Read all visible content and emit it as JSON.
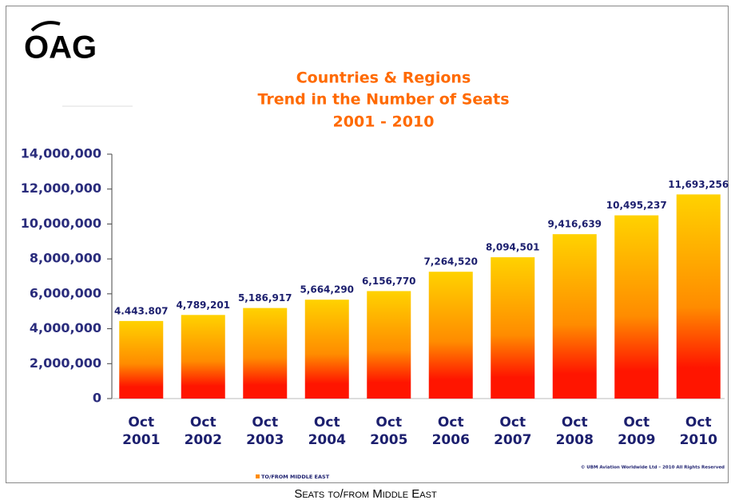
{
  "logo": "OAG",
  "caption": "Seats to/from Middle East",
  "chart_data": {
    "type": "bar",
    "title": [
      "Countries & Regions",
      "Trend in the Number of Seats",
      "2001 - 2010"
    ],
    "categories": [
      "Oct 2001",
      "Oct 2002",
      "Oct 2003",
      "Oct 2004",
      "Oct 2005",
      "Oct 2006",
      "Oct 2007",
      "Oct 2008",
      "Oct 2009",
      "Oct 2010"
    ],
    "series": [
      {
        "name": "TO/FROM MIDDLE EAST",
        "color": "#ff8c00",
        "gradient": [
          "#ffd200",
          "#ff8c00",
          "#ff1500"
        ],
        "values": [
          4443807,
          4789201,
          5186917,
          5664290,
          6156770,
          7264520,
          8094501,
          9416639,
          10495237,
          11693256
        ],
        "value_labels": [
          "4.443.807",
          "4,789,201",
          "5,186,917",
          "5,664,290",
          "6,156,770",
          "7,264,520",
          "8,094,501",
          "9,416,639",
          "10,495,237",
          "11,693,256"
        ]
      }
    ],
    "ylim": [
      0,
      14000000
    ],
    "yticks": [
      0,
      {
        "value": 2000000,
        "label": "2,000,000"
      },
      {
        "value": 4000000,
        "label": "4,000,000"
      },
      {
        "value": 6000000,
        "label": "6,000,000"
      },
      {
        "value": 8000000,
        "label": "8,000,000"
      },
      {
        "value": 10000000,
        "label": "10,000,000"
      },
      {
        "value": 12000000,
        "label": "12,000,000"
      },
      {
        "value": 14000000,
        "label": "14,000,000"
      }
    ],
    "copyright": "© UBM Aviation Worldwide Ltd – 2010 All Rights Reserved"
  }
}
